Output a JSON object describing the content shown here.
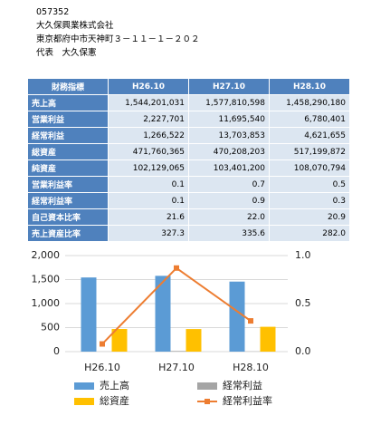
{
  "header": {
    "lines": [
      "057352",
      "大久保興業株式会社",
      "東京都府中市天神町３－１１－１－２０２",
      "代表　大久保憲"
    ]
  },
  "table": {
    "columns": [
      "財務指標",
      "H26.10",
      "H27.10",
      "H28.10"
    ],
    "rows": [
      [
        "売上高",
        "1,544,201,031",
        "1,577,810,598",
        "1,458,290,180"
      ],
      [
        "営業利益",
        "2,227,701",
        "11,695,540",
        "6,780,401"
      ],
      [
        "経常利益",
        "1,266,522",
        "13,703,853",
        "4,621,655"
      ],
      [
        "総資産",
        "471,760,365",
        "470,208,203",
        "517,199,872"
      ],
      [
        "純資産",
        "102,129,065",
        "103,401,200",
        "108,070,794"
      ],
      [
        "営業利益率",
        "0.1",
        "0.7",
        "0.5"
      ],
      [
        "経常利益率",
        "0.1",
        "0.9",
        "0.3"
      ],
      [
        "自己資本比率",
        "21.6",
        "22.0",
        "20.9"
      ],
      [
        "売上資産比率",
        "327.3",
        "335.6",
        "282.0"
      ]
    ]
  },
  "chart_data": {
    "type": "bar",
    "categories": [
      "H26.10",
      "H27.10",
      "H28.10"
    ],
    "series": [
      {
        "name": "売上高",
        "color": "#5b9bd5",
        "values": [
          1544,
          1578,
          1458
        ]
      },
      {
        "name": "経常利益",
        "color": "#a5a5a5",
        "values": [
          1.3,
          13.7,
          4.6
        ]
      },
      {
        "name": "総資産",
        "color": "#ffc000",
        "values": [
          472,
          470,
          517
        ]
      },
      {
        "name": "経常利益率",
        "color": "#ed7d31",
        "values": [
          0.08,
          0.87,
          0.32
        ],
        "axis": "y2",
        "type": "line"
      }
    ],
    "ylim": [
      0,
      2000
    ],
    "yticks": [
      0,
      500,
      {
        "value": 1000,
        "label": "1,000"
      },
      {
        "value": 1500,
        "label": "1,500"
      },
      {
        "value": 2000,
        "label": "2,000"
      }
    ],
    "y2lim": [
      0,
      1
    ],
    "y2ticks": [
      {
        "value": 0,
        "label": "0.0"
      },
      0.5,
      {
        "value": 1,
        "label": "1.0"
      }
    ],
    "grid": true
  }
}
